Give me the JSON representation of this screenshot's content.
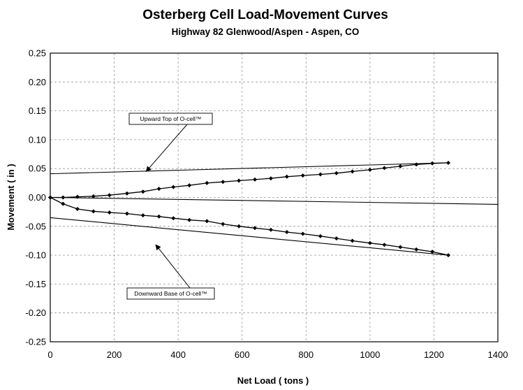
{
  "chart_data": {
    "type": "line",
    "title": "Osterberg Cell Load-Movement Curves",
    "subtitle": "Highway 82 Glenwood/Aspen - Aspen, CO",
    "xlabel": "Net Load  ( tons )",
    "ylabel": "Movement  ( in )",
    "xlim": [
      0,
      1400
    ],
    "ylim": [
      -0.25,
      0.25
    ],
    "x_ticks": [
      "0",
      "200",
      "400",
      "600",
      "800",
      "1000",
      "1200",
      "1400"
    ],
    "y_ticks": [
      "0.25",
      "0.20",
      "0.15",
      "0.10",
      "0.05",
      "0.00",
      "-0.05",
      "-0.10",
      "-0.15",
      "-0.20",
      "-0.25"
    ],
    "grid": true,
    "series": [
      {
        "name": "Upward Top of O-cell™",
        "marker": "diamond",
        "x": [
          0,
          40,
          85,
          135,
          185,
          240,
          290,
          340,
          385,
          435,
          490,
          540,
          590,
          640,
          690,
          740,
          790,
          845,
          895,
          945,
          1000,
          1045,
          1095,
          1145,
          1195,
          1245
        ],
        "y": [
          0.0,
          0.0,
          0.001,
          0.002,
          0.004,
          0.007,
          0.01,
          0.015,
          0.018,
          0.021,
          0.025,
          0.027,
          0.029,
          0.031,
          0.033,
          0.036,
          0.038,
          0.04,
          0.042,
          0.045,
          0.048,
          0.051,
          0.054,
          0.057,
          0.059,
          0.06
        ]
      },
      {
        "name": "Downward Base of O-cell™",
        "marker": "diamond",
        "x": [
          0,
          40,
          85,
          135,
          185,
          240,
          290,
          340,
          385,
          435,
          490,
          540,
          590,
          640,
          690,
          740,
          790,
          845,
          895,
          945,
          1000,
          1045,
          1095,
          1145,
          1195,
          1245
        ],
        "y": [
          0.0,
          -0.011,
          -0.02,
          -0.024,
          -0.026,
          -0.028,
          -0.031,
          -0.033,
          -0.036,
          -0.039,
          -0.041,
          -0.046,
          -0.05,
          -0.053,
          -0.056,
          -0.06,
          -0.063,
          -0.067,
          -0.071,
          -0.075,
          -0.079,
          -0.082,
          -0.086,
          -0.09,
          -0.094,
          -0.1
        ]
      }
    ],
    "reference_lines": [
      {
        "x": [
          0,
          1245
        ],
        "y": [
          0.041,
          0.06
        ]
      },
      {
        "x": [
          0,
          1245
        ],
        "y": [
          -0.035,
          -0.1
        ]
      },
      {
        "x": [
          0,
          1400
        ],
        "y": [
          0.0,
          -0.012
        ]
      }
    ],
    "annotations": [
      {
        "text": "Upward Top of O-cell™",
        "arrow_to": [
          300,
          0.045
        ]
      },
      {
        "text": "Downward Base of O-cell™",
        "arrow_to": [
          330,
          -0.082
        ]
      }
    ]
  }
}
